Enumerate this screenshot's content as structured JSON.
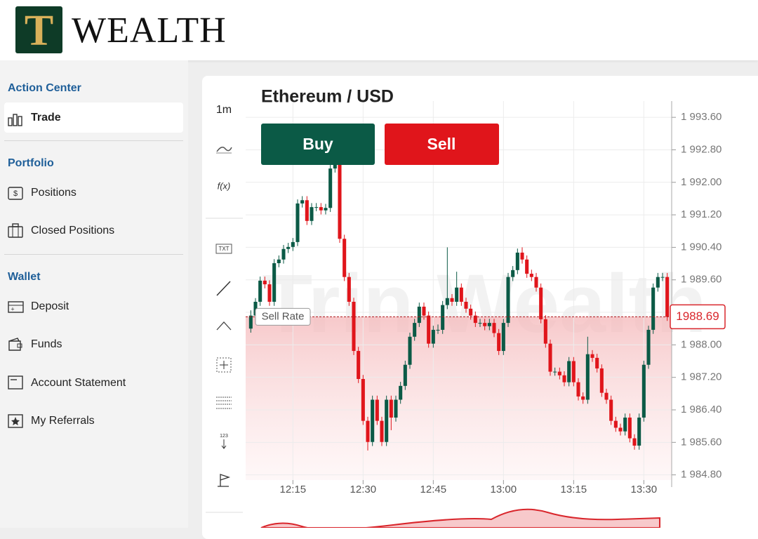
{
  "header": {
    "logo_letter": "T",
    "brand": "WEALTH"
  },
  "sidebar": {
    "sections": [
      {
        "title": "Action Center",
        "items": [
          "Trade"
        ]
      },
      {
        "title": "Portfolio",
        "items": [
          "Positions",
          "Closed Positions"
        ]
      },
      {
        "title": "Wallet",
        "items": [
          "Deposit",
          "Funds",
          "Account Statement",
          "My Referrals"
        ]
      }
    ]
  },
  "toolbar": {
    "interval": "1m",
    "function": "f(x)",
    "text_tool": "TXT",
    "counter": "123"
  },
  "buttons": {
    "buy": "Buy",
    "sell": "Sell"
  },
  "chart_data": {
    "type": "candlestick",
    "title": "Ethereum / USD",
    "watermark": "Trin Wealth",
    "up_color": "#0b5a46",
    "down_color": "#e0151b",
    "grid": true,
    "categories": [
      null,
      null,
      null,
      null,
      null,
      null,
      null,
      null,
      null,
      "12:15",
      null,
      null,
      null,
      null,
      null,
      null,
      null,
      null,
      null,
      null,
      null,
      null,
      null,
      null,
      "12:30",
      null,
      null,
      null,
      null,
      null,
      null,
      null,
      null,
      null,
      null,
      null,
      null,
      null,
      null,
      "12:45",
      null,
      null,
      null,
      null,
      null,
      null,
      null,
      null,
      null,
      null,
      null,
      null,
      null,
      null,
      "13:00",
      null,
      null,
      null,
      null,
      null,
      null,
      null,
      null,
      null,
      null,
      null,
      null,
      null,
      null,
      "13:15",
      null,
      null,
      null,
      null,
      null,
      null,
      null,
      null,
      null,
      null,
      null,
      null,
      null,
      null,
      "13:30",
      null,
      null,
      null,
      null,
      null
    ],
    "open": [
      1988.4,
      1988.72,
      1989.06,
      1989.58,
      1989.49,
      1989.06,
      1990.01,
      1990.1,
      1990.36,
      1990.41,
      1990.53,
      1991.48,
      1991.56,
      1991.05,
      1991.39,
      1991.39,
      1991.31,
      1991.37,
      1992.34,
      1992.43,
      1990.61,
      1989.67,
      1989.06,
      1987.85,
      1987.16,
      1986.13,
      1985.61,
      1986.65,
      1986.13,
      1985.61,
      1986.65,
      1986.21,
      1986.65,
      1986.99,
      1987.51,
      1988.2,
      1988.54,
      1988.94,
      1988.72,
      1988.03,
      1988.37,
      1988.37,
      1988.98,
      1989.15,
      1989.06,
      1989.41,
      1989.06,
      1988.89,
      1988.72,
      1988.54,
      1988.54,
      1988.46,
      1988.54,
      1988.29,
      1987.85,
      1988.54,
      1989.67,
      1989.84,
      1990.27,
      1990.1,
      1989.75,
      1989.67,
      1989.41,
      1988.63,
      1988.03,
      1987.34,
      1987.34,
      1987.25,
      1987.08,
      1987.6,
      1987.08,
      1986.73,
      1986.65,
      1987.77,
      1987.68,
      1987.42,
      1986.82,
      1986.65,
      1986.13,
      1985.96,
      1985.87,
      1986.21,
      1985.7,
      1985.52,
      1986.21,
      1987.51,
      1988.37,
      1989.41,
      1989.67,
      1989.67
    ],
    "high": [
      1988.85,
      1989.15,
      1989.68,
      1989.68,
      1989.59,
      1990.11,
      1990.2,
      1990.46,
      1990.51,
      1990.63,
      1991.58,
      1991.66,
      1991.66,
      1991.49,
      1991.49,
      1991.49,
      1991.47,
      1992.44,
      1992.6,
      1992.53,
      1990.71,
      1989.77,
      1989.16,
      1987.95,
      1987.26,
      1986.23,
      1986.75,
      1986.75,
      1986.23,
      1986.75,
      1986.75,
      1986.75,
      1987.09,
      1987.61,
      1988.3,
      1988.64,
      1989.04,
      1989.04,
      1988.82,
      1988.47,
      1988.5,
      1989.08,
      1990.4,
      1989.25,
      1989.8,
      1989.51,
      1989.16,
      1988.99,
      1988.82,
      1988.64,
      1988.64,
      1988.64,
      1988.64,
      1988.39,
      1988.64,
      1989.77,
      1989.94,
      1990.37,
      1990.4,
      1990.2,
      1989.85,
      1989.77,
      1989.51,
      1988.73,
      1988.13,
      1987.44,
      1987.44,
      1987.35,
      1987.7,
      1987.7,
      1987.18,
      1986.83,
      1988.2,
      1987.87,
      1987.78,
      1987.52,
      1986.92,
      1986.75,
      1986.23,
      1986.06,
      1986.31,
      1986.31,
      1985.8,
      1986.31,
      1987.61,
      1988.47,
      1989.51,
      1989.77,
      1989.77,
      1989.77
    ],
    "low": [
      1988.3,
      1988.62,
      1988.96,
      1989.39,
      1988.96,
      1988.96,
      1989.91,
      1990.0,
      1990.26,
      1990.31,
      1990.43,
      1991.38,
      1990.95,
      1990.95,
      1991.29,
      1991.21,
      1991.21,
      1991.27,
      1992.24,
      1990.51,
      1989.57,
      1988.96,
      1987.75,
      1987.06,
      1986.03,
      1985.4,
      1985.51,
      1986.03,
      1985.51,
      1985.51,
      1985.9,
      1986.11,
      1986.55,
      1986.89,
      1987.41,
      1988.1,
      1988.44,
      1988.62,
      1987.93,
      1987.93,
      1988.27,
      1988.27,
      1988.88,
      1988.96,
      1988.96,
      1988.96,
      1988.79,
      1988.62,
      1988.44,
      1988.44,
      1988.36,
      1988.36,
      1988.19,
      1987.75,
      1987.75,
      1988.44,
      1989.57,
      1989.74,
      1990.0,
      1989.65,
      1989.57,
      1989.31,
      1988.53,
      1987.93,
      1987.24,
      1987.24,
      1987.15,
      1986.98,
      1986.98,
      1986.98,
      1986.63,
      1986.55,
      1986.55,
      1987.58,
      1987.32,
      1986.72,
      1986.55,
      1986.03,
      1985.86,
      1985.77,
      1985.77,
      1985.6,
      1985.42,
      1985.42,
      1986.11,
      1987.41,
      1988.27,
      1989.31,
      1989.57,
      1988.59
    ],
    "close": [
      1988.72,
      1989.06,
      1989.58,
      1989.49,
      1989.06,
      1990.01,
      1990.1,
      1990.36,
      1990.41,
      1990.53,
      1991.48,
      1991.56,
      1991.05,
      1991.39,
      1991.39,
      1991.31,
      1991.37,
      1992.34,
      1992.43,
      1990.61,
      1989.67,
      1989.06,
      1987.85,
      1987.16,
      1986.13,
      1985.61,
      1986.65,
      1986.13,
      1985.61,
      1986.65,
      1986.21,
      1986.65,
      1986.99,
      1987.51,
      1988.2,
      1988.54,
      1988.94,
      1988.72,
      1988.03,
      1988.37,
      1988.37,
      1988.98,
      1989.15,
      1989.06,
      1989.41,
      1989.06,
      1988.89,
      1988.72,
      1988.54,
      1988.54,
      1988.46,
      1988.54,
      1988.29,
      1987.85,
      1988.54,
      1989.67,
      1989.84,
      1990.27,
      1990.1,
      1989.75,
      1989.67,
      1989.41,
      1988.63,
      1988.03,
      1987.34,
      1987.34,
      1987.25,
      1987.08,
      1987.6,
      1987.08,
      1986.73,
      1986.65,
      1987.77,
      1987.68,
      1987.42,
      1986.82,
      1986.65,
      1986.13,
      1985.96,
      1985.87,
      1986.21,
      1985.7,
      1985.52,
      1986.21,
      1987.51,
      1988.37,
      1989.41,
      1989.67,
      1989.67,
      1988.69
    ],
    "ylim": [
      1984.5,
      1994.0
    ],
    "yticks": [
      {
        "value": 1993.6,
        "label": "1 993.60"
      },
      {
        "value": 1992.8,
        "label": "1 992.80"
      },
      {
        "value": 1992.0,
        "label": "1 992.00"
      },
      {
        "value": 1991.2,
        "label": "1 991.20"
      },
      {
        "value": 1990.4,
        "label": "1 990.40"
      },
      {
        "value": 1989.6,
        "label": "1 989.60"
      },
      {
        "value": 1988.8,
        "label": "1 988.80"
      },
      {
        "value": 1988.0,
        "label": "1 988.00"
      },
      {
        "value": 1987.2,
        "label": "1 987.20"
      },
      {
        "value": 1986.4,
        "label": "1 986.40"
      },
      {
        "value": 1985.6,
        "label": "1 985.60"
      },
      {
        "value": 1984.8,
        "label": "1 984.80"
      }
    ],
    "price_line": {
      "label": "Sell Rate",
      "value": 1988.69
    }
  }
}
